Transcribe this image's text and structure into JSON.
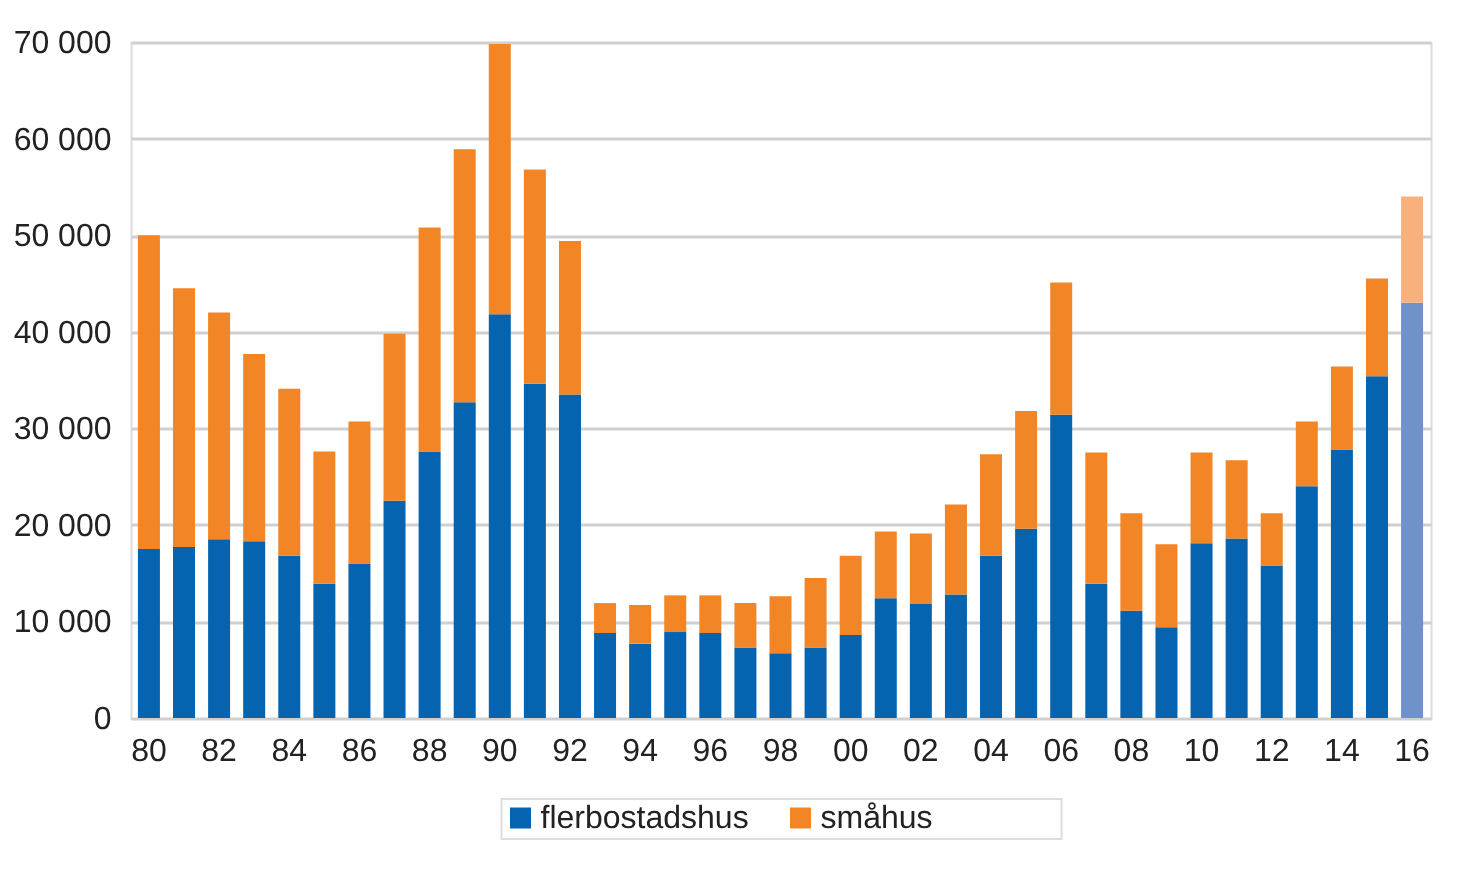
{
  "chart_data": {
    "type": "bar",
    "stacked": true,
    "categories": [
      "80",
      null,
      "82",
      null,
      "84",
      null,
      "86",
      null,
      "88",
      null,
      "90",
      null,
      "92",
      null,
      "94",
      null,
      "96",
      null,
      "98",
      null,
      "00",
      null,
      "02",
      null,
      "04",
      null,
      "06",
      null,
      "08",
      null,
      "10",
      null,
      "12",
      null,
      "14",
      null,
      "16"
    ],
    "series": [
      {
        "name": "flerbostadshus",
        "color": "#0563b0",
        "colors": [
          "#0563b0",
          "#0563b0",
          "#0563b0",
          "#0563b0",
          "#0563b0",
          "#0563b0",
          "#0563b0",
          "#0563b0",
          "#0563b0",
          "#0563b0",
          "#0563b0",
          "#0563b0",
          "#0563b0",
          "#0563b0",
          "#0563b0",
          "#0563b0",
          "#0563b0",
          "#0563b0",
          "#0563b0",
          "#0563b0",
          "#0563b0",
          "#0563b0",
          "#0563b0",
          "#0563b0",
          "#0563b0",
          "#0563b0",
          "#0563b0",
          "#0563b0",
          "#0563b0",
          "#0563b0",
          "#0563b0",
          "#0563b0",
          "#0563b0",
          "#0563b0",
          "#0563b0",
          "#0563b0",
          "#7092c8"
        ],
        "values": [
          17500,
          17700,
          18500,
          18300,
          16800,
          13900,
          16000,
          22500,
          27600,
          32700,
          41800,
          34600,
          33500,
          8800,
          7700,
          8900,
          8800,
          7300,
          6700,
          7300,
          8600,
          12400,
          11800,
          12800,
          16800,
          19600,
          31400,
          13900,
          11100,
          9400,
          18100,
          18600,
          15800,
          24000,
          27800,
          35400,
          43000
        ]
      },
      {
        "name": "småhus",
        "color": "#f28526",
        "colors": [
          "#f28526",
          "#f28526",
          "#f28526",
          "#f28526",
          "#f28526",
          "#f28526",
          "#f28526",
          "#f28526",
          "#f28526",
          "#f28526",
          "#f28526",
          "#f28526",
          "#f28526",
          "#f28526",
          "#f28526",
          "#f28526",
          "#f28526",
          "#f28526",
          "#f28526",
          "#f28526",
          "#f28526",
          "#f28526",
          "#f28526",
          "#f28526",
          "#f28526",
          "#f28526",
          "#f28526",
          "#f28526",
          "#f28526",
          "#f28526",
          "#f28526",
          "#f28526",
          "#f28526",
          "#f28526",
          "#f28526",
          "#f28526",
          "#f8b07c"
        ],
        "values": [
          32500,
          26800,
          23500,
          19400,
          17300,
          13700,
          14700,
          17300,
          23200,
          26200,
          28000,
          22200,
          15900,
          3100,
          4000,
          3800,
          3900,
          4600,
          5900,
          7200,
          8200,
          6900,
          7300,
          9300,
          10500,
          12200,
          13700,
          13600,
          10100,
          8600,
          9400,
          8100,
          5400,
          6700,
          8600,
          10100,
          11000
        ]
      }
    ],
    "ylim": [
      0,
      70000
    ],
    "yticks": [
      {
        "value": 0,
        "label": "0"
      },
      {
        "value": 10000,
        "label": "10 000"
      },
      {
        "value": 20000,
        "label": "20 000"
      },
      {
        "value": 30000,
        "label": "30 000"
      },
      {
        "value": 40000,
        "label": "40 000"
      },
      {
        "value": 50000,
        "label": "50 000"
      },
      {
        "value": 60000,
        "label": "60 000"
      },
      {
        "value": 70000,
        "label": "70 000"
      }
    ],
    "grid": "y",
    "legend": "bottom"
  }
}
